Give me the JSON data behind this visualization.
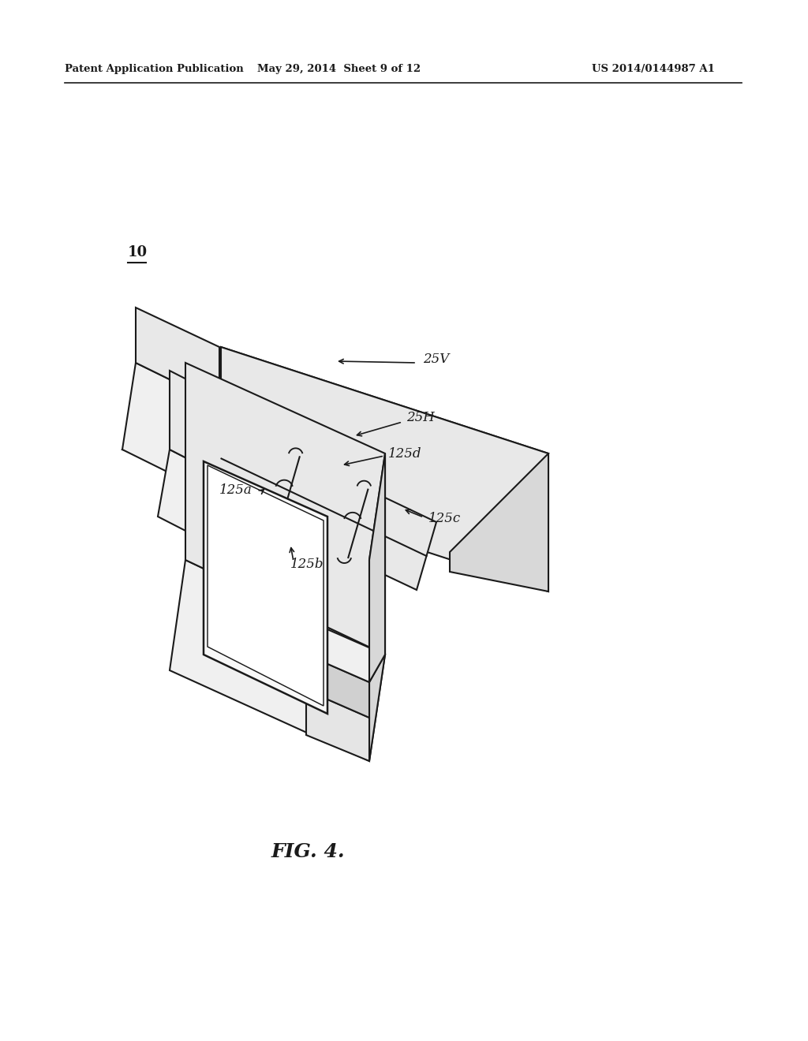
{
  "background_color": "#ffffff",
  "line_color": "#1a1a1a",
  "line_width": 1.5,
  "fill_color_top": "#f0f0f0",
  "fill_color_side": "#d8d8d8",
  "fill_color_front": "#e8e8e8",
  "header_left": "Patent Application Publication",
  "header_mid": "May 29, 2014  Sheet 9 of 12",
  "header_right": "US 2014/0144987 A1",
  "fig_label": "FIG. 4.",
  "ref_10": "10",
  "ref_25V": "25V",
  "ref_25H": "25H",
  "ref_125a": "125a",
  "ref_125b": "125b",
  "ref_125c": "125c",
  "ref_125d": "125d",
  "label_fontsize": 12,
  "header_fontsize": 9.5,
  "fig_fontsize": 18,
  "ref10_fontsize": 13
}
